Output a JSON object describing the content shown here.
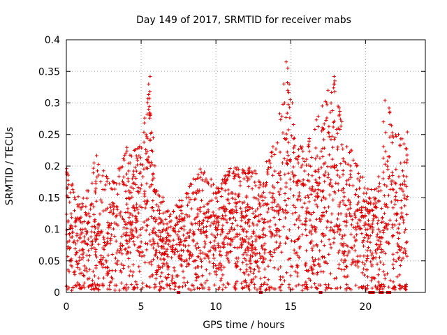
{
  "chart_data": {
    "type": "scatter",
    "title": "Day 149 of 2017, SRMTID for receiver mabs",
    "xlabel": "GPS time / hours",
    "ylabel": "SRMTID / TECUs",
    "xlim": [
      0,
      24
    ],
    "ylim": [
      0,
      0.4
    ],
    "xticks": [
      0,
      5,
      10,
      15,
      20
    ],
    "xtick_labels": [
      "0",
      "5",
      "10",
      "15",
      "20"
    ],
    "yticks": [
      0,
      0.05,
      0.1,
      0.15,
      0.2,
      0.25,
      0.3,
      0.35,
      0.4
    ],
    "ytick_labels": [
      "0",
      "0.05",
      "0.1",
      "0.15",
      "0.2",
      "0.25",
      "0.3",
      "0.35",
      "0.4"
    ],
    "grid": true,
    "marker": "+",
    "color": "#e00000",
    "x_range": [
      0,
      22.8
    ],
    "envelope": [
      [
        0,
        0.2
      ],
      [
        1,
        0.14
      ],
      [
        2,
        0.22
      ],
      [
        3,
        0.17
      ],
      [
        4,
        0.23
      ],
      [
        5,
        0.24
      ],
      [
        5.6,
        0.34
      ],
      [
        6,
        0.17
      ],
      [
        7,
        0.13
      ],
      [
        8,
        0.16
      ],
      [
        9,
        0.2
      ],
      [
        10,
        0.17
      ],
      [
        11,
        0.2
      ],
      [
        12,
        0.2
      ],
      [
        13,
        0.19
      ],
      [
        14,
        0.24
      ],
      [
        14.7,
        0.36
      ],
      [
        15.3,
        0.25
      ],
      [
        16,
        0.23
      ],
      [
        16.8,
        0.28
      ],
      [
        17.5,
        0.32
      ],
      [
        17.9,
        0.34
      ],
      [
        18.5,
        0.26
      ],
      [
        19.5,
        0.2
      ],
      [
        20.3,
        0.16
      ],
      [
        21,
        0.19
      ],
      [
        21.5,
        0.3
      ],
      [
        22,
        0.25
      ],
      [
        22.8,
        0.25
      ]
    ],
    "floor_points": [
      [
        7.5,
        0.0
      ],
      [
        13,
        0.0
      ],
      [
        17,
        0.0
      ],
      [
        20.3,
        0.0
      ],
      [
        20.5,
        0.0
      ],
      [
        21,
        0.0
      ],
      [
        21.1,
        0.0
      ],
      [
        21.5,
        0.0
      ],
      [
        21.6,
        0.0
      ]
    ],
    "highlight_points": [
      [
        5.6,
        0.342
      ],
      [
        5.5,
        0.33
      ],
      [
        5.5,
        0.29
      ],
      [
        5.6,
        0.28
      ],
      [
        14.7,
        0.365
      ],
      [
        14.8,
        0.355
      ],
      [
        14.9,
        0.33
      ],
      [
        14.8,
        0.32
      ],
      [
        14.6,
        0.3
      ],
      [
        15.1,
        0.3
      ],
      [
        17.5,
        0.32
      ],
      [
        17.9,
        0.342
      ],
      [
        17.95,
        0.335
      ],
      [
        17.4,
        0.3
      ],
      [
        21.3,
        0.304
      ],
      [
        21.2,
        0.27
      ],
      [
        22.8,
        0.254
      ],
      [
        22.2,
        0.25
      ]
    ],
    "point_count": 2600,
    "seed": 149
  }
}
